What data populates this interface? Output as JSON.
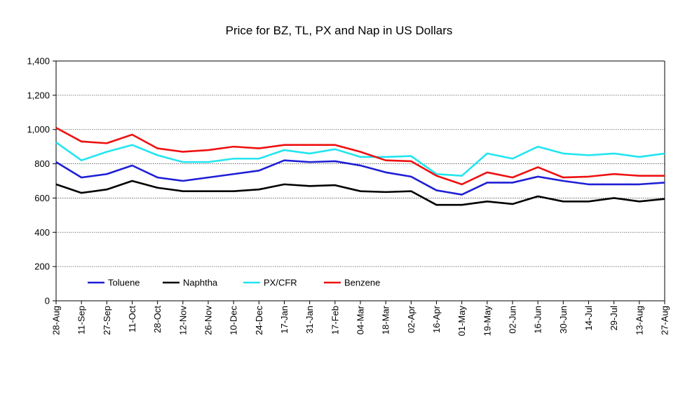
{
  "chart_data": {
    "type": "line",
    "title": "Price for BZ, TL, PX and Nap in US Dollars",
    "xlabel": "",
    "ylabel": "",
    "ylim": [
      0,
      1400
    ],
    "yticks": [
      0,
      200,
      400,
      600,
      800,
      1000,
      1200,
      1400
    ],
    "ytick_labels": [
      "0",
      "200",
      "400",
      "600",
      "800",
      "1,000",
      "1,200",
      "1,400"
    ],
    "grid": true,
    "legend_position": "lower-left",
    "x": [
      "28-Aug",
      "11-Sep",
      "27-Sep",
      "11-Oct",
      "28-Oct",
      "12-Nov",
      "26-Nov",
      "10-Dec",
      "24-Dec",
      "17-Jan",
      "31-Jan",
      "17-Feb",
      "04-Mar",
      "18-Mar",
      "02-Apr",
      "16-Apr",
      "01-May",
      "19-May",
      "02-Jun",
      "16-Jun",
      "30-Jun",
      "14-Jul",
      "29-Jul",
      "13-Aug",
      "27-Aug"
    ],
    "series": [
      {
        "name": "Toluene",
        "color": "#1f1fd6",
        "values": [
          810,
          720,
          740,
          790,
          720,
          700,
          720,
          740,
          760,
          820,
          810,
          815,
          790,
          750,
          725,
          645,
          620,
          690,
          690,
          725,
          700,
          680,
          680,
          680,
          690
        ]
      },
      {
        "name": "Naphtha",
        "color": "#000000",
        "values": [
          680,
          630,
          650,
          700,
          660,
          640,
          640,
          640,
          650,
          680,
          670,
          675,
          640,
          635,
          640,
          560,
          560,
          580,
          565,
          610,
          580,
          580,
          600,
          580,
          595
        ]
      },
      {
        "name": "PX/CFR",
        "color": "#22e5f0",
        "values": [
          925,
          820,
          870,
          910,
          850,
          810,
          810,
          830,
          830,
          880,
          860,
          885,
          840,
          840,
          845,
          740,
          730,
          860,
          830,
          900,
          860,
          850,
          860,
          840,
          860
        ]
      },
      {
        "name": "Benzene",
        "color": "#ee1111",
        "values": [
          1010,
          930,
          920,
          970,
          890,
          870,
          880,
          900,
          890,
          910,
          910,
          910,
          870,
          820,
          815,
          730,
          680,
          750,
          720,
          780,
          720,
          725,
          740,
          730,
          730
        ]
      }
    ]
  }
}
